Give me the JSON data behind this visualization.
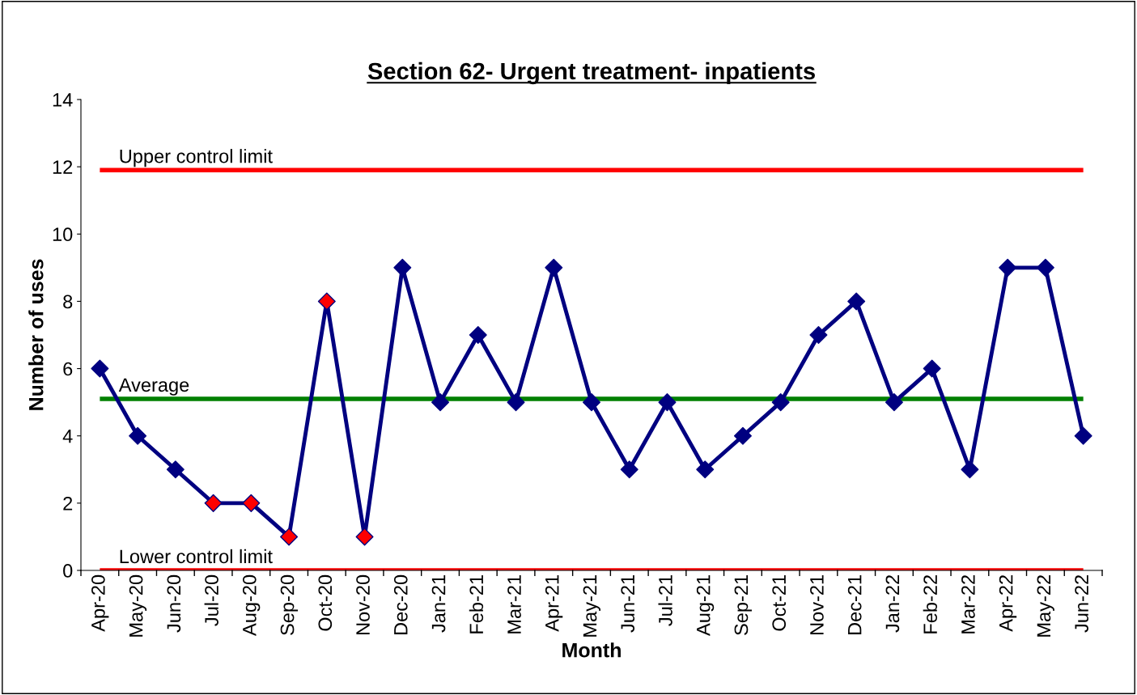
{
  "chart_data": {
    "type": "line",
    "title": "Section 62- Urgent treatment- inpatients",
    "xlabel": "Month",
    "ylabel": "Number of uses",
    "categories": [
      "Apr-20",
      "May-20",
      "Jun-20",
      "Jul-20",
      "Aug-20",
      "Sep-20",
      "Oct-20",
      "Nov-20",
      "Dec-20",
      "Jan-21",
      "Feb-21",
      "Mar-21",
      "Apr-21",
      "May-21",
      "Jun-21",
      "Jul-21",
      "Aug-21",
      "Sep-21",
      "Oct-21",
      "Nov-21",
      "Dec-21",
      "Jan-22",
      "Feb-22",
      "Mar-22",
      "Apr-22",
      "May-22",
      "Jun-22"
    ],
    "series": [
      {
        "color": "#000080",
        "values": [
          6,
          4,
          3,
          2,
          2,
          1,
          8,
          1,
          9,
          5,
          7,
          5,
          9,
          5,
          3,
          5,
          3,
          4,
          5,
          7,
          8,
          5,
          6,
          3,
          9,
          9,
          4
        ],
        "colors": [
          "#000080",
          "#000080",
          "#000080",
          "#ff0000",
          "#ff0000",
          "#ff0000",
          "#ff0000",
          "#ff0000",
          "#000080",
          "#000080",
          "#000080",
          "#000080",
          "#000080",
          "#000080",
          "#000080",
          "#000080",
          "#000080",
          "#000080",
          "#000080",
          "#000080",
          "#000080",
          "#000080",
          "#000080",
          "#000080",
          "#000080",
          "#000080",
          "#000080"
        ]
      }
    ],
    "ref_lines": [
      {
        "axis": "y",
        "value": 11.9,
        "label": "Upper control limit",
        "color": "#ff0000"
      },
      {
        "axis": "y",
        "value": 5.1,
        "label": "Average",
        "color": "#008000"
      },
      {
        "axis": "y",
        "value": 0,
        "label": "Lower control limit",
        "color": "#ff0000"
      }
    ],
    "ylim": [
      0,
      14
    ],
    "yticks": [
      0,
      2,
      4,
      6,
      8,
      10,
      12,
      14
    ],
    "marker": "diamond",
    "line_style": "solid",
    "grid": false,
    "legend": false
  }
}
